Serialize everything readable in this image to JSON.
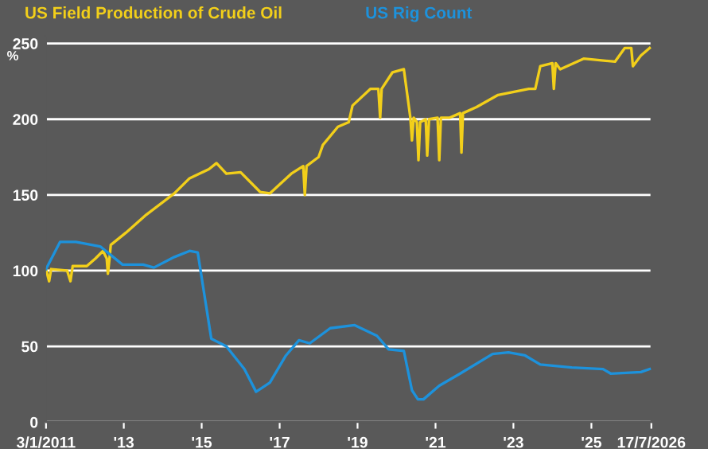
{
  "chart_data": {
    "type": "line",
    "ylabel": "%",
    "xlim": [
      "2011-01-03",
      "2026-07-17"
    ],
    "xticks": [
      {
        "value": "2011-01-03",
        "label": "3/1/2011"
      },
      {
        "value": "2013-01-01",
        "label": "'13"
      },
      {
        "value": "2015-01-01",
        "label": "'15"
      },
      {
        "value": "2017-01-01",
        "label": "'17"
      },
      {
        "value": "2019-01-01",
        "label": "'19"
      },
      {
        "value": "2021-01-01",
        "label": "'21"
      },
      {
        "value": "2023-01-01",
        "label": "'23"
      },
      {
        "value": "2025-01-01",
        "label": "'25"
      },
      {
        "value": "2026-07-17",
        "label": "17/7/2026"
      }
    ],
    "ylim": [
      0,
      255
    ],
    "yticks": [
      0,
      50,
      100,
      150,
      200,
      250
    ],
    "grid": "y",
    "legend": "top left",
    "series": [
      {
        "name": "US Field Production of Crude Oil",
        "color": "#f2cf1a",
        "x": [
          "2011-01-03",
          "2011-02-01",
          "2011-02-20",
          "2011-07-20",
          "2011-08-20",
          "2011-09-10",
          "2012-01-20",
          "2012-04-10",
          "2012-06-20",
          "2012-07-25",
          "2012-08-05",
          "2012-08-20",
          "2012-09-01",
          "2013-01-20",
          "2013-08-01",
          "2014-04-20",
          "2014-09-10",
          "2015-03-10",
          "2015-05-20",
          "2015-08-20",
          "2016-01-01",
          "2016-07-01",
          "2016-10-01",
          "2017-04-20",
          "2017-08-10",
          "2017-08-25",
          "2017-09-10",
          "2018-01-01",
          "2018-02-10",
          "2018-07-01",
          "2018-10-10",
          "2018-11-15",
          "2019-05-01",
          "2019-07-15",
          "2019-08-01",
          "2019-08-15",
          "2019-11-25",
          "2020-03-10",
          "2020-05-10",
          "2020-05-25",
          "2020-06-10",
          "2020-07-10",
          "2020-07-25",
          "2020-08-10",
          "2020-10-01",
          "2020-10-15",
          "2020-11-01",
          "2021-01-20",
          "2021-02-05",
          "2021-02-20",
          "2021-05-15",
          "2021-08-20",
          "2021-09-01",
          "2021-09-15",
          "2022-01-20",
          "2022-08-10",
          "2023-05-25",
          "2023-07-25",
          "2023-09-10",
          "2024-01-01",
          "2024-01-15",
          "2024-02-01",
          "2024-03-15",
          "2024-10-20",
          "2025-08-10",
          "2025-11-10",
          "2026-01-10",
          "2026-01-25",
          "2026-04-10",
          "2026-07-01"
        ],
        "values": [
          101,
          93,
          101,
          100,
          93,
          103,
          103,
          108,
          113,
          108,
          98,
          108,
          117,
          125,
          137,
          151,
          161,
          167,
          171,
          164,
          165,
          152,
          151,
          164,
          169,
          150,
          169,
          175,
          183,
          195,
          198,
          209,
          220,
          220,
          201,
          220,
          231,
          233,
          201,
          186,
          201,
          198,
          173,
          198,
          200,
          176,
          200,
          201,
          173,
          201,
          201,
          204,
          178,
          204,
          208,
          216,
          220,
          220,
          235,
          237,
          220,
          237,
          233,
          240,
          238,
          247,
          247,
          235,
          242,
          247
        ]
      },
      {
        "name": "US Rig Count",
        "color": "#1d92dc",
        "x": [
          "2011-01-03",
          "2011-05-15",
          "2011-10-10",
          "2012-05-25",
          "2012-12-20",
          "2013-07-01",
          "2013-10-10",
          "2014-04-20",
          "2014-09-10",
          "2014-11-25",
          "2015-04-01",
          "2015-08-20",
          "2016-02-05",
          "2016-05-25",
          "2016-10-01",
          "2017-03-01",
          "2017-07-01",
          "2017-10-10",
          "2018-04-20",
          "2018-12-05",
          "2019-07-01",
          "2019-10-20",
          "2020-03-10",
          "2020-05-25",
          "2020-07-20",
          "2020-09-10",
          "2021-02-05",
          "2021-08-20",
          "2022-06-20",
          "2022-11-15",
          "2023-04-20",
          "2023-09-10",
          "2024-07-01",
          "2025-04-20",
          "2025-07-01",
          "2026-04-10",
          "2026-07-01"
        ],
        "values": [
          101,
          119,
          119,
          116,
          104,
          104,
          102,
          109,
          113,
          112,
          55,
          50,
          35,
          20,
          26,
          44,
          54,
          52,
          62,
          64,
          57,
          48,
          47,
          21,
          15,
          15,
          24,
          32,
          45,
          46,
          44,
          38,
          36,
          35,
          32,
          33,
          35
        ]
      }
    ]
  }
}
